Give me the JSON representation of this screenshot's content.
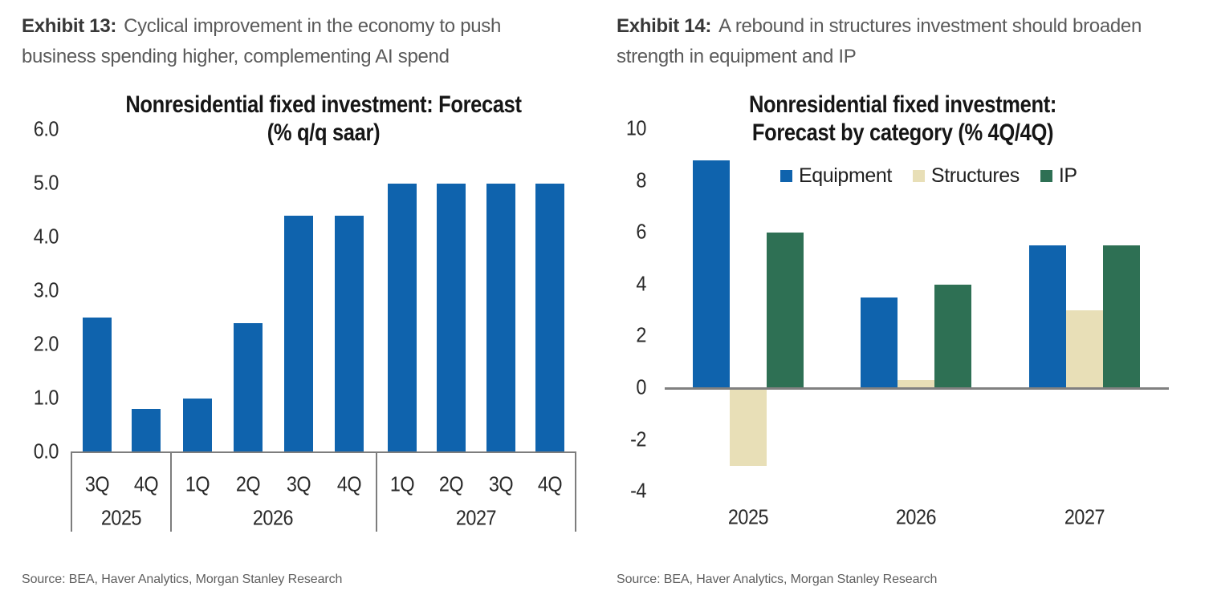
{
  "exhibits": [
    {
      "label": "Exhibit 13:",
      "title": "Cyclical improvement in the economy to push business spending higher, complementing AI spend"
    },
    {
      "label": "Exhibit 14:",
      "title": "A rebound in structures investment should broaden strength in equipment and IP"
    }
  ],
  "sources": {
    "left": "Source: BEA, Haver Analytics, Morgan Stanley Research",
    "right": "Source: BEA, Haver Analytics, Morgan Stanley Research"
  },
  "colors": {
    "equipment_blue": "#0F63AD",
    "structures_beige": "#E8DFB7",
    "ip_green": "#2E7054",
    "axis_gray": "#7D7D7D"
  },
  "chart_data": [
    {
      "type": "bar",
      "title": "Nonresidential fixed investment: Forecast (% q/q saar)",
      "title_lines": [
        "Nonresidential fixed investment: Forecast",
        "(% q/q saar)"
      ],
      "bar_color": "#0F63AD",
      "ylim": [
        0,
        6
      ],
      "yticks": [
        {
          "value": 6,
          "label": "6.0"
        },
        {
          "value": 5,
          "label": "5.0"
        },
        {
          "value": 4,
          "label": "4.0"
        },
        {
          "value": 3,
          "label": "3.0"
        },
        {
          "value": 2,
          "label": "2.0"
        },
        {
          "value": 1,
          "label": "1.0"
        },
        {
          "value": 0,
          "label": "0.0"
        }
      ],
      "groups": [
        {
          "year": "2025",
          "quarters": [
            "3Q",
            "4Q"
          ],
          "values": [
            2.5,
            0.8
          ]
        },
        {
          "year": "2026",
          "quarters": [
            "1Q",
            "2Q",
            "3Q",
            "4Q"
          ],
          "values": [
            1.0,
            2.4,
            4.4,
            4.4
          ]
        },
        {
          "year": "2027",
          "quarters": [
            "1Q",
            "2Q",
            "3Q",
            "4Q"
          ],
          "values": [
            5.0,
            5.0,
            5.0,
            5.0
          ]
        }
      ],
      "grid": false,
      "legend_position": "none"
    },
    {
      "type": "grouped-bar",
      "title": "Nonresidential fixed investment: Forecast by category (% 4Q/4Q)",
      "title_lines": [
        "Nonresidential fixed investment:",
        "Forecast by category (% 4Q/4Q)"
      ],
      "categories": [
        "2025",
        "2026",
        "2027"
      ],
      "series": [
        {
          "name": "Equipment",
          "color": "#0F63AD",
          "values": [
            8.8,
            3.5,
            5.5
          ]
        },
        {
          "name": "Structures",
          "color": "#E8DFB7",
          "values": [
            -3.0,
            0.3,
            3.0
          ]
        },
        {
          "name": "IP",
          "color": "#2E7054",
          "values": [
            6.0,
            4.0,
            5.5
          ]
        }
      ],
      "ylim": [
        -4,
        10
      ],
      "yticks": [
        {
          "value": 10,
          "label": "10"
        },
        {
          "value": 8,
          "label": "8"
        },
        {
          "value": 6,
          "label": "6"
        },
        {
          "value": 4,
          "label": "4"
        },
        {
          "value": 2,
          "label": "2"
        },
        {
          "value": 0,
          "label": "0"
        },
        {
          "value": -2,
          "label": "-2"
        },
        {
          "value": -4,
          "label": "-4"
        }
      ],
      "grid": false,
      "legend_position": "top"
    }
  ]
}
